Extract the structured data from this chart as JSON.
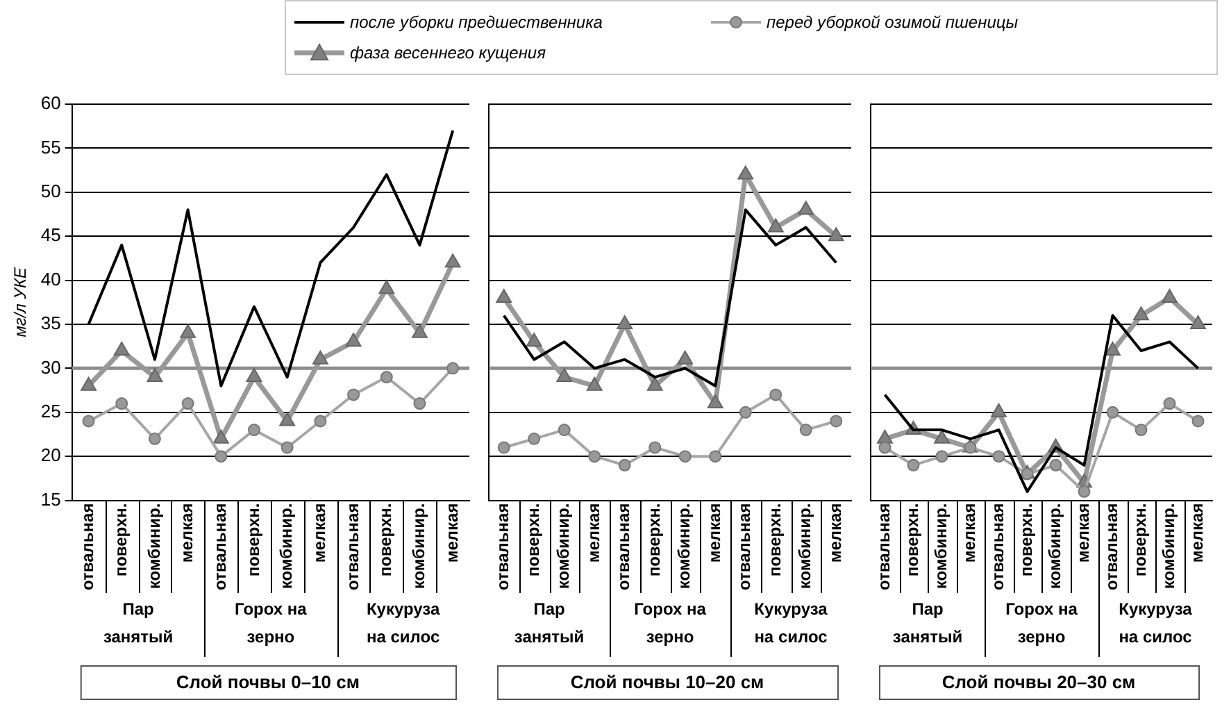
{
  "chart_data": [
    {
      "type": "line",
      "ylabel": "мг/л УКЕ",
      "xlabel": "Слой почвы 0–10 см",
      "legend": "top",
      "grid": "y",
      "ylim": [
        15,
        60
      ],
      "yticks": [
        15,
        20,
        25,
        30,
        35,
        40,
        45,
        50,
        55,
        60
      ],
      "categories": [
        "отвальная",
        "поверхн.",
        "комбинир.",
        "мелкая",
        "отвальная",
        "поверхн.",
        "комбинир.",
        "мелкая",
        "отвальная",
        "поверхн.",
        "комбинир.",
        "мелкая"
      ],
      "annotations": [
        "Пар занятый",
        "Горох на зерно",
        "Кукуруза на силос"
      ],
      "ref_lines": [
        {
          "axis": "y",
          "value": 30,
          "color": "#8c8c8c"
        }
      ],
      "series": [
        {
          "name": "после уборки предшественника",
          "color": "#000000",
          "marker": "none",
          "values": [
            35,
            44,
            31,
            48,
            28,
            37,
            29,
            42,
            46,
            52,
            44,
            57
          ]
        },
        {
          "name": "перед уборкой озимой пшеницы",
          "color": "#a6a6a6",
          "marker": "circle",
          "values": [
            24,
            26,
            22,
            26,
            20,
            23,
            21,
            24,
            27,
            29,
            26,
            30
          ]
        },
        {
          "name": "фаза весеннего кущения",
          "color": "#999999",
          "marker": "triangle",
          "values": [
            28,
            32,
            29,
            34,
            22,
            29,
            24,
            31,
            33,
            39,
            34,
            42
          ]
        }
      ]
    },
    {
      "type": "line",
      "xlabel": "Слой почвы 10–20 см",
      "grid": "y",
      "tick_labels": "x",
      "ylim": [
        15,
        60
      ],
      "yticks": [
        15,
        20,
        25,
        30,
        35,
        40,
        45,
        50,
        55,
        60
      ],
      "categories": [
        "отвальная",
        "поверхн.",
        "комбинир.",
        "мелкая",
        "отвальная",
        "поверхн.",
        "комбинир.",
        "мелкая",
        "отвальная",
        "поверхн.",
        "комбинир.",
        "мелкая"
      ],
      "annotations": [
        "Пар занятый",
        "Горох на зерно",
        "Кукуруза на силос"
      ],
      "ref_lines": [
        {
          "axis": "y",
          "value": 30,
          "color": "#8c8c8c"
        }
      ],
      "series": [
        {
          "color": "#000000",
          "marker": "none",
          "values": [
            36,
            31,
            33,
            30,
            31,
            29,
            30,
            28,
            48,
            44,
            46,
            42
          ]
        },
        {
          "color": "#a6a6a6",
          "marker": "circle",
          "values": [
            21,
            22,
            23,
            20,
            19,
            21,
            20,
            20,
            25,
            27,
            23,
            24
          ]
        },
        {
          "color": "#999999",
          "marker": "triangle",
          "values": [
            38,
            33,
            29,
            28,
            35,
            28,
            31,
            26,
            52,
            46,
            48,
            45
          ]
        }
      ]
    },
    {
      "type": "line",
      "xlabel": "Слой почвы 20–30 см",
      "grid": "y",
      "tick_labels": "x",
      "ylim": [
        15,
        60
      ],
      "yticks": [
        15,
        20,
        25,
        30,
        35,
        40,
        45,
        50,
        55,
        60
      ],
      "categories": [
        "отвальная",
        "поверхн.",
        "комбинир.",
        "мелкая",
        "отвальная",
        "поверхн.",
        "комбинир.",
        "мелкая",
        "отвальная",
        "поверхн.",
        "комбинир.",
        "мелкая"
      ],
      "annotations": [
        "Пар занятый",
        "Горох на зерно",
        "Кукуруза на силос"
      ],
      "ref_lines": [
        {
          "axis": "y",
          "value": 30,
          "color": "#8c8c8c"
        }
      ],
      "series": [
        {
          "color": "#000000",
          "marker": "none",
          "values": [
            27,
            23,
            23,
            22,
            23,
            16,
            21,
            19,
            36,
            32,
            33,
            30
          ]
        },
        {
          "color": "#a6a6a6",
          "marker": "circle",
          "values": [
            21,
            19,
            20,
            21,
            20,
            18,
            19,
            16,
            25,
            23,
            26,
            24
          ]
        },
        {
          "color": "#999999",
          "marker": "triangle",
          "values": [
            22,
            23,
            22,
            21,
            25,
            18,
            21,
            17,
            32,
            36,
            38,
            35
          ]
        }
      ]
    }
  ]
}
